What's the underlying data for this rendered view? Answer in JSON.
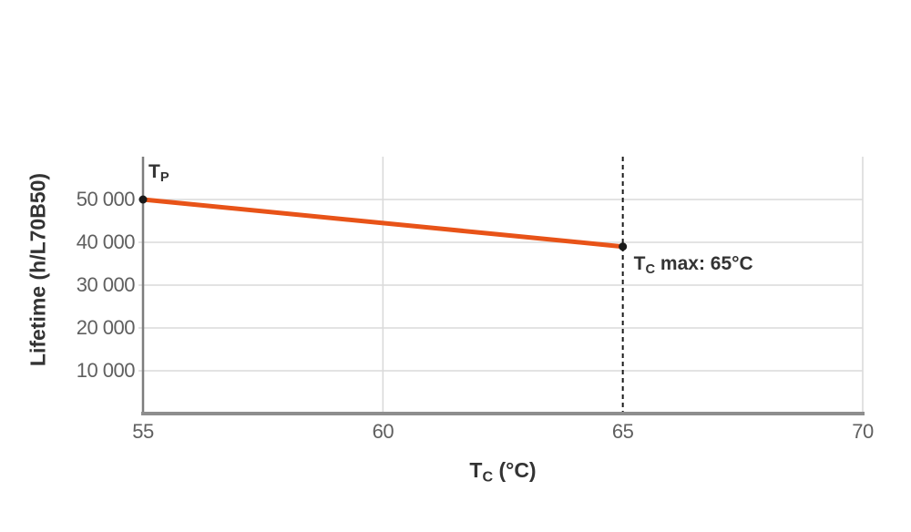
{
  "chart_data": {
    "type": "line",
    "title": "",
    "xlabel": {
      "main": "T",
      "sub": "C",
      "rest": " (°C)"
    },
    "ylabel": "Lifetime (h/L70B50)",
    "xlim": [
      55,
      70
    ],
    "ylim": [
      0,
      60000
    ],
    "grid": true,
    "legend": "none",
    "xticks": [
      {
        "value": 55,
        "label": "55"
      },
      {
        "value": 60,
        "label": "60"
      },
      {
        "value": 65,
        "label": "65"
      },
      {
        "value": 70,
        "label": "70"
      }
    ],
    "yticks": [
      {
        "value": 10000,
        "label": "10 000"
      },
      {
        "value": 20000,
        "label": "20 000"
      },
      {
        "value": 30000,
        "label": "30 000"
      },
      {
        "value": 40000,
        "label": "40 000"
      },
      {
        "value": 50000,
        "label": "50 000"
      }
    ],
    "series": [
      {
        "name": "lifetime-curve",
        "color": "#E85318",
        "points": [
          {
            "x": 55,
            "y": 50000
          },
          {
            "x": 65,
            "y": 39000
          }
        ]
      }
    ],
    "reference_line": {
      "x": 65,
      "style": "dashed",
      "color": "#1A1A1A"
    },
    "annotations": [
      {
        "text_main": "T",
        "text_sub": "P",
        "text_rest": "",
        "point": {
          "x": 55,
          "y": 50000
        }
      },
      {
        "text_main": "T",
        "text_sub": "C",
        "text_rest": " max: 65°C",
        "point": {
          "x": 65,
          "y": 39000
        }
      }
    ],
    "colors": {
      "series": "#E85318",
      "marker": "#1A1A1A",
      "reference_line": "#1A1A1A",
      "grid": "#DADADA",
      "axis": "#8E8E8E",
      "tick_text": "#5F5F5F",
      "title_text": "#333333"
    }
  }
}
